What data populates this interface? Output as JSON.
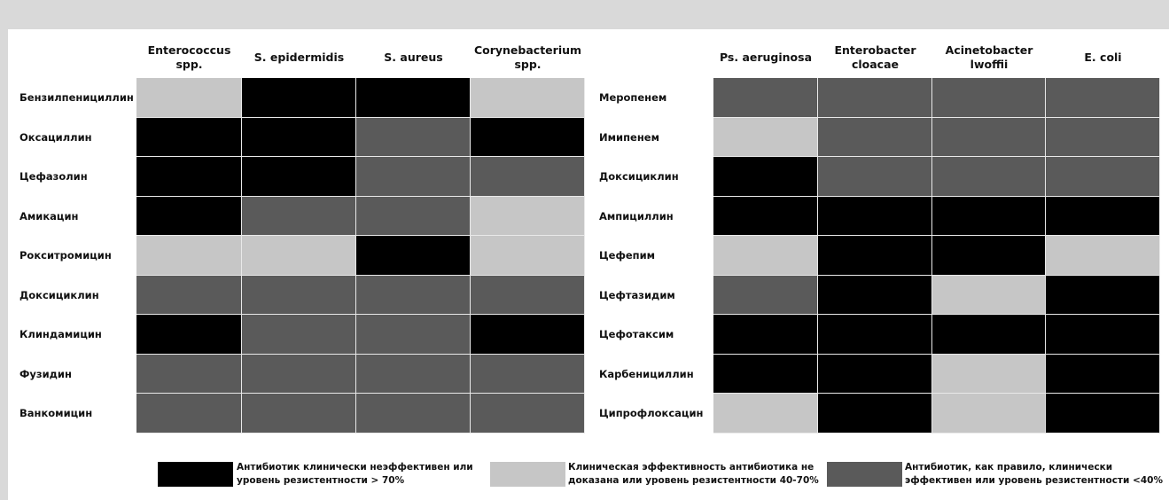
{
  "colors": {
    "high": "#000000",
    "mid": "#c6c6c6",
    "low": "#5a5a5a"
  },
  "legend": [
    {
      "key": "high",
      "line1": "Антибиотик клинически неэффективен или",
      "line2": "уровень резистентности > 70%"
    },
    {
      "key": "mid",
      "line1": "Клиническая эффективность антибиотика не",
      "line2": "доказана или уровень резистентности 40-70%"
    },
    {
      "key": "low",
      "line1": "Антибиотик, как правило, клинически",
      "line2": "эффективен или  уровень резистентности <40%"
    }
  ],
  "chart_data": [
    {
      "type": "heatmap",
      "columns": [
        "Enterococcus\nspp.",
        "S. epidermidis",
        "S. aureus",
        "Corynebacterium\nspp."
      ],
      "rows": [
        "Бензилпенициллин",
        "Оксациллин",
        "Цефазолин",
        "Амикацин",
        "Рокситромицин",
        "Доксициклин",
        "Клиндамицин",
        "Фузидин",
        "Ванкомицин"
      ],
      "values": [
        [
          "mid",
          "high",
          "high",
          "mid"
        ],
        [
          "high",
          "high",
          "low",
          "high"
        ],
        [
          "high",
          "high",
          "low",
          "low"
        ],
        [
          "high",
          "low",
          "low",
          "mid"
        ],
        [
          "mid",
          "mid",
          "high",
          "mid"
        ],
        [
          "low",
          "low",
          "low",
          "low"
        ],
        [
          "high",
          "low",
          "low",
          "high"
        ],
        [
          "low",
          "low",
          "low",
          "low"
        ],
        [
          "low",
          "low",
          "low",
          "low"
        ]
      ]
    },
    {
      "type": "heatmap",
      "columns": [
        "Ps. aeruginosa",
        "Enterobacter\ncloacae",
        "Acinetobacter\nlwoffii",
        "E. coli"
      ],
      "rows": [
        "Меропенем",
        "Имипенем",
        "Доксициклин",
        "Ампициллин",
        "Цефепим",
        "Цефтазидим",
        "Цефотаксим",
        "Карбенициллин",
        "Ципрофлоксацин"
      ],
      "values": [
        [
          "low",
          "low",
          "low",
          "low"
        ],
        [
          "mid",
          "low",
          "low",
          "low"
        ],
        [
          "high",
          "low",
          "low",
          "low"
        ],
        [
          "high",
          "high",
          "high",
          "high"
        ],
        [
          "mid",
          "high",
          "high",
          "mid"
        ],
        [
          "low",
          "high",
          "mid",
          "high"
        ],
        [
          "high",
          "high",
          "high",
          "high"
        ],
        [
          "high",
          "high",
          "mid",
          "high"
        ],
        [
          "mid",
          "high",
          "mid",
          "high"
        ]
      ]
    }
  ]
}
